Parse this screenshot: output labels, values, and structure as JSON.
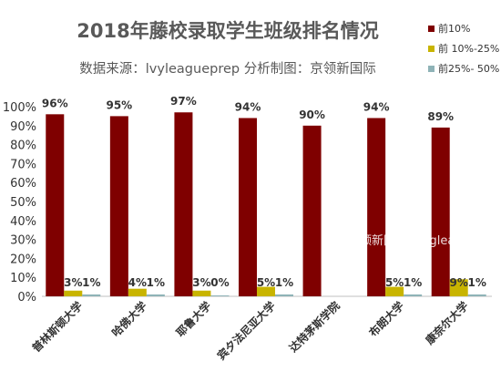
{
  "chart_data": {
    "type": "bar",
    "title": "2018年藤校录取学生班级排名情况",
    "subtitle": "数据来源：lvyleagueprep 分析制图：京领新国际",
    "categories": [
      "普林斯顿大学",
      "哈佛大学",
      "耶鲁大学",
      "宾夕法尼亚大学",
      "达特茅斯学院",
      "布朗大学",
      "康奈尔大学"
    ],
    "series": [
      {
        "name": "前10%",
        "color": "#7f0000",
        "values": [
          96,
          95,
          97,
          94,
          90,
          94,
          89
        ],
        "labels": [
          "96%",
          "95%",
          "97%",
          "94%",
          "90%",
          "94%",
          "89%"
        ]
      },
      {
        "name": "前 10%-25%",
        "color": "#c8b400",
        "values": [
          3,
          4,
          3,
          5,
          null,
          5,
          9
        ],
        "labels": [
          "3%",
          "4%",
          "3%",
          "5%",
          "",
          "5%",
          "9%"
        ]
      },
      {
        "name": "前25%- 50%",
        "color": "#8fb3b7",
        "values": [
          1,
          1,
          0,
          1,
          null,
          1,
          1
        ],
        "labels": [
          "1%",
          "1%",
          "0%",
          "1%",
          "",
          "1%",
          "1%"
        ]
      }
    ],
    "ylim": [
      0,
      100
    ],
    "yticks": [
      "0%",
      "10%",
      "20%",
      "30%",
      "40%",
      "50%",
      "60%",
      "70%",
      "80%",
      "90%",
      "100%"
    ],
    "grid": false,
    "legend_position": "top-right"
  },
  "watermark": "京领新国际 Kinglead01"
}
